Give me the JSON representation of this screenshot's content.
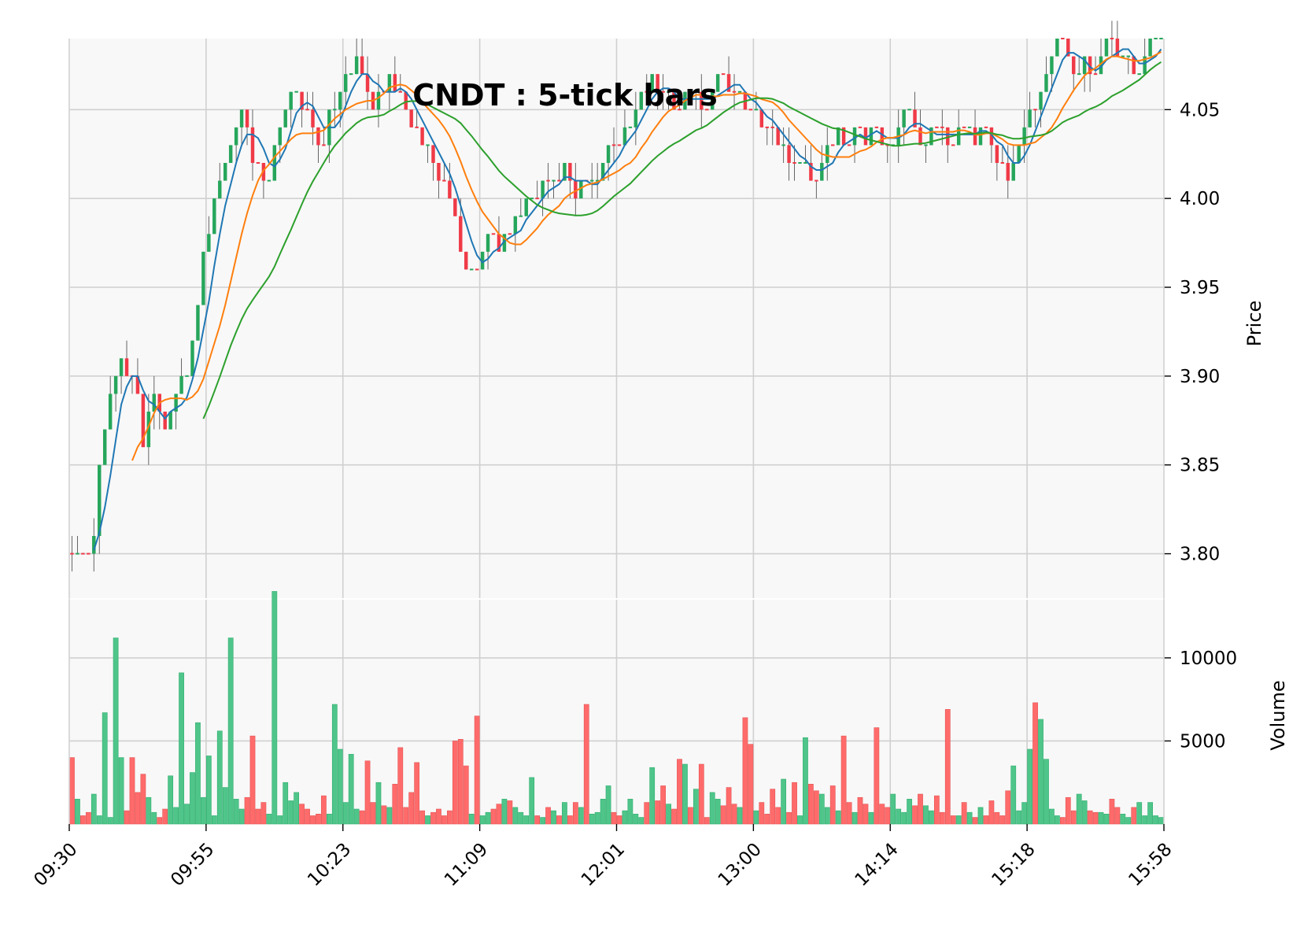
{
  "chart_data": {
    "type": "candlestick",
    "title": "CNDT : 5-tick bars",
    "price_panel": {
      "ylabel": "Price",
      "ylim": [
        3.775,
        4.09
      ],
      "yticks": [
        "3.80",
        "3.85",
        "3.90",
        "3.95",
        "4.00",
        "4.05"
      ],
      "grid": true
    },
    "volume_panel": {
      "ylabel": "Volume",
      "ylim": [
        0,
        13500
      ],
      "yticks": [
        "5000",
        "10000"
      ],
      "grid": true
    },
    "x_tick_labels": [
      "09:30",
      "09:55",
      "10:23",
      "11:09",
      "12:01",
      "13:00",
      "14:14",
      "15:18",
      "15:58"
    ],
    "colors": {
      "up": "#26a65b",
      "down": "#f03a47",
      "volume_up": "#4fc58a",
      "volume_down": "#ff6b6b",
      "ma_fast": "#1f77b4",
      "ma_mid": "#ff7f0e",
      "ma_slow": "#2ca02c",
      "panel_bg": "#f8f8f8",
      "grid": "#d0d0d0"
    },
    "bars_count": 200,
    "price_path": [
      [
        0,
        3.8
      ],
      [
        3,
        3.8
      ],
      [
        5,
        3.81
      ],
      [
        7,
        3.86
      ],
      [
        9,
        3.89
      ],
      [
        11,
        3.91
      ],
      [
        13,
        3.9
      ],
      [
        15,
        3.9
      ],
      [
        17,
        3.86
      ],
      [
        19,
        3.9
      ],
      [
        21,
        3.87
      ],
      [
        23,
        3.88
      ],
      [
        25,
        3.89
      ],
      [
        28,
        3.91
      ],
      [
        31,
        3.97
      ],
      [
        34,
        4.0
      ],
      [
        37,
        4.03
      ],
      [
        40,
        4.05
      ],
      [
        43,
        4.02
      ],
      [
        46,
        4.01
      ],
      [
        49,
        4.04
      ],
      [
        52,
        4.06
      ],
      [
        55,
        4.05
      ],
      [
        57,
        4.04
      ],
      [
        59,
        4.03
      ],
      [
        61,
        4.05
      ],
      [
        63,
        4.06
      ],
      [
        65,
        4.07
      ],
      [
        67,
        4.08
      ],
      [
        69,
        4.06
      ],
      [
        71,
        4.05
      ],
      [
        73,
        4.06
      ],
      [
        75,
        4.07
      ],
      [
        77,
        4.06
      ],
      [
        79,
        4.05
      ],
      [
        81,
        4.04
      ],
      [
        83,
        4.03
      ],
      [
        85,
        4.02
      ],
      [
        87,
        4.01
      ],
      [
        89,
        4.0
      ],
      [
        91,
        3.98
      ],
      [
        93,
        3.96
      ],
      [
        95,
        3.96
      ],
      [
        97,
        3.97
      ],
      [
        99,
        3.98
      ],
      [
        101,
        3.97
      ],
      [
        103,
        3.98
      ],
      [
        105,
        3.99
      ],
      [
        107,
        4.0
      ],
      [
        109,
        4.0
      ],
      [
        111,
        4.01
      ],
      [
        113,
        4.01
      ],
      [
        115,
        4.01
      ],
      [
        117,
        4.02
      ],
      [
        119,
        4.0
      ],
      [
        121,
        4.01
      ],
      [
        123,
        4.01
      ],
      [
        125,
        4.02
      ],
      [
        127,
        4.03
      ],
      [
        129,
        4.03
      ],
      [
        131,
        4.04
      ],
      [
        133,
        4.05
      ],
      [
        135,
        4.06
      ],
      [
        137,
        4.07
      ],
      [
        139,
        4.06
      ],
      [
        141,
        4.06
      ],
      [
        143,
        4.05
      ],
      [
        145,
        4.06
      ],
      [
        147,
        4.06
      ],
      [
        149,
        4.05
      ],
      [
        151,
        4.06
      ],
      [
        153,
        4.07
      ],
      [
        155,
        4.06
      ],
      [
        157,
        4.06
      ],
      [
        159,
        4.05
      ],
      [
        161,
        4.05
      ],
      [
        163,
        4.04
      ],
      [
        165,
        4.04
      ],
      [
        167,
        4.03
      ],
      [
        169,
        4.02
      ],
      [
        171,
        4.02
      ],
      [
        173,
        4.02
      ],
      [
        175,
        4.01
      ],
      [
        177,
        4.02
      ],
      [
        179,
        4.03
      ],
      [
        181,
        4.04
      ],
      [
        183,
        4.03
      ],
      [
        185,
        4.04
      ],
      [
        187,
        4.03
      ],
      [
        189,
        4.04
      ],
      [
        191,
        4.03
      ],
      [
        193,
        4.03
      ],
      [
        195,
        4.04
      ],
      [
        197,
        4.05
      ],
      [
        199,
        4.04
      ],
      [
        201,
        4.03
      ],
      [
        203,
        4.04
      ],
      [
        205,
        4.04
      ],
      [
        207,
        4.03
      ],
      [
        209,
        4.04
      ],
      [
        211,
        4.04
      ],
      [
        213,
        4.03
      ],
      [
        215,
        4.04
      ],
      [
        217,
        4.03
      ],
      [
        219,
        4.02
      ],
      [
        221,
        4.01
      ],
      [
        223,
        4.03
      ],
      [
        225,
        4.04
      ],
      [
        227,
        4.05
      ],
      [
        229,
        4.06
      ],
      [
        231,
        4.08
      ],
      [
        233,
        4.09
      ],
      [
        235,
        4.08
      ],
      [
        237,
        4.07
      ],
      [
        239,
        4.08
      ],
      [
        241,
        4.07
      ],
      [
        243,
        4.08
      ],
      [
        245,
        4.09
      ],
      [
        247,
        4.08
      ],
      [
        249,
        4.08
      ],
      [
        251,
        4.07
      ],
      [
        253,
        4.08
      ],
      [
        255,
        4.09
      ],
      [
        257,
        4.09
      ]
    ],
    "volume_profile": [
      [
        0,
        4000
      ],
      [
        1,
        1500
      ],
      [
        2,
        500
      ],
      [
        3,
        700
      ],
      [
        4,
        1800
      ],
      [
        5,
        500
      ],
      [
        6,
        6700
      ],
      [
        7,
        400
      ],
      [
        8,
        11200
      ],
      [
        9,
        4000
      ],
      [
        10,
        800
      ],
      [
        11,
        4000
      ],
      [
        12,
        1900
      ],
      [
        13,
        3000
      ],
      [
        14,
        1600
      ],
      [
        15,
        700
      ],
      [
        16,
        400
      ],
      [
        17,
        900
      ],
      [
        18,
        2900
      ],
      [
        19,
        1000
      ],
      [
        20,
        9100
      ],
      [
        21,
        1200
      ],
      [
        22,
        3100
      ],
      [
        23,
        6100
      ],
      [
        24,
        1600
      ],
      [
        25,
        4100
      ],
      [
        26,
        500
      ],
      [
        27,
        5600
      ],
      [
        28,
        2200
      ],
      [
        29,
        11200
      ],
      [
        30,
        1500
      ],
      [
        31,
        900
      ],
      [
        32,
        1600
      ],
      [
        33,
        5300
      ],
      [
        34,
        900
      ],
      [
        35,
        1300
      ],
      [
        36,
        600
      ],
      [
        37,
        14000
      ],
      [
        38,
        500
      ],
      [
        39,
        2500
      ],
      [
        40,
        1400
      ],
      [
        41,
        1900
      ],
      [
        42,
        1200
      ],
      [
        43,
        900
      ],
      [
        44,
        500
      ],
      [
        45,
        600
      ],
      [
        46,
        1700
      ],
      [
        47,
        600
      ],
      [
        48,
        7200
      ],
      [
        49,
        4500
      ],
      [
        50,
        1300
      ],
      [
        51,
        4200
      ],
      [
        52,
        900
      ],
      [
        53,
        800
      ],
      [
        54,
        3800
      ],
      [
        55,
        1300
      ],
      [
        56,
        2500
      ],
      [
        57,
        1100
      ],
      [
        58,
        1000
      ],
      [
        59,
        2400
      ],
      [
        60,
        4600
      ],
      [
        61,
        1000
      ],
      [
        62,
        1900
      ],
      [
        63,
        3700
      ],
      [
        64,
        800
      ],
      [
        65,
        500
      ],
      [
        66,
        700
      ],
      [
        67,
        900
      ],
      [
        68,
        500
      ],
      [
        69,
        800
      ],
      [
        70,
        5000
      ],
      [
        71,
        5100
      ],
      [
        72,
        3500
      ],
      [
        73,
        600
      ],
      [
        74,
        6500
      ],
      [
        75,
        500
      ],
      [
        76,
        700
      ],
      [
        77,
        900
      ],
      [
        78,
        1200
      ],
      [
        79,
        1500
      ],
      [
        80,
        1400
      ],
      [
        81,
        1000
      ],
      [
        82,
        700
      ],
      [
        83,
        500
      ],
      [
        84,
        2800
      ],
      [
        85,
        500
      ],
      [
        86,
        400
      ],
      [
        87,
        1000
      ],
      [
        88,
        800
      ],
      [
        89,
        500
      ],
      [
        90,
        1300
      ],
      [
        91,
        500
      ],
      [
        92,
        1300
      ],
      [
        93,
        1000
      ],
      [
        94,
        7200
      ],
      [
        95,
        600
      ],
      [
        96,
        700
      ],
      [
        97,
        1500
      ],
      [
        98,
        2300
      ],
      [
        99,
        700
      ],
      [
        100,
        500
      ],
      [
        101,
        800
      ],
      [
        102,
        1500
      ],
      [
        103,
        600
      ],
      [
        104,
        400
      ],
      [
        105,
        1300
      ],
      [
        106,
        3400
      ],
      [
        107,
        1400
      ],
      [
        108,
        2300
      ],
      [
        109,
        1200
      ],
      [
        110,
        900
      ],
      [
        111,
        3900
      ],
      [
        112,
        3600
      ],
      [
        113,
        1000
      ],
      [
        114,
        2100
      ],
      [
        115,
        3600
      ],
      [
        116,
        400
      ],
      [
        117,
        1900
      ],
      [
        118,
        1500
      ],
      [
        119,
        1100
      ],
      [
        120,
        2200
      ],
      [
        121,
        1200
      ],
      [
        122,
        1000
      ],
      [
        123,
        6400
      ],
      [
        124,
        4800
      ],
      [
        125,
        800
      ],
      [
        126,
        1300
      ],
      [
        127,
        600
      ],
      [
        128,
        2100
      ],
      [
        129,
        1000
      ],
      [
        130,
        2700
      ],
      [
        131,
        700
      ],
      [
        132,
        2500
      ],
      [
        133,
        500
      ],
      [
        134,
        5200
      ],
      [
        135,
        2400
      ],
      [
        136,
        2000
      ],
      [
        137,
        1800
      ],
      [
        138,
        1000
      ],
      [
        139,
        2300
      ],
      [
        140,
        800
      ],
      [
        141,
        5300
      ],
      [
        142,
        1300
      ],
      [
        143,
        700
      ],
      [
        144,
        1600
      ],
      [
        145,
        1200
      ],
      [
        146,
        700
      ],
      [
        147,
        5800
      ],
      [
        148,
        1200
      ],
      [
        149,
        1000
      ],
      [
        150,
        1800
      ],
      [
        151,
        900
      ],
      [
        152,
        700
      ],
      [
        153,
        1500
      ],
      [
        154,
        1100
      ],
      [
        155,
        1800
      ],
      [
        156,
        1100
      ],
      [
        157,
        800
      ],
      [
        158,
        1700
      ],
      [
        159,
        700
      ],
      [
        160,
        6900
      ],
      [
        161,
        500
      ],
      [
        162,
        500
      ],
      [
        163,
        1300
      ],
      [
        164,
        700
      ],
      [
        165,
        400
      ],
      [
        166,
        1000
      ],
      [
        167,
        500
      ],
      [
        168,
        1400
      ],
      [
        169,
        700
      ],
      [
        170,
        500
      ],
      [
        171,
        2000
      ],
      [
        172,
        3500
      ],
      [
        173,
        800
      ],
      [
        174,
        1300
      ],
      [
        175,
        4500
      ],
      [
        176,
        7300
      ],
      [
        177,
        6300
      ],
      [
        178,
        3900
      ],
      [
        179,
        900
      ],
      [
        180,
        500
      ],
      [
        181,
        400
      ],
      [
        182,
        1600
      ],
      [
        183,
        800
      ],
      [
        184,
        1800
      ],
      [
        185,
        1400
      ],
      [
        186,
        800
      ],
      [
        187,
        700
      ],
      [
        188,
        700
      ],
      [
        189,
        600
      ],
      [
        190,
        1500
      ],
      [
        191,
        1000
      ],
      [
        192,
        600
      ],
      [
        193,
        400
      ],
      [
        194,
        1000
      ],
      [
        195,
        1300
      ],
      [
        196,
        500
      ],
      [
        197,
        1300
      ],
      [
        198,
        500
      ],
      [
        199,
        400
      ]
    ]
  }
}
